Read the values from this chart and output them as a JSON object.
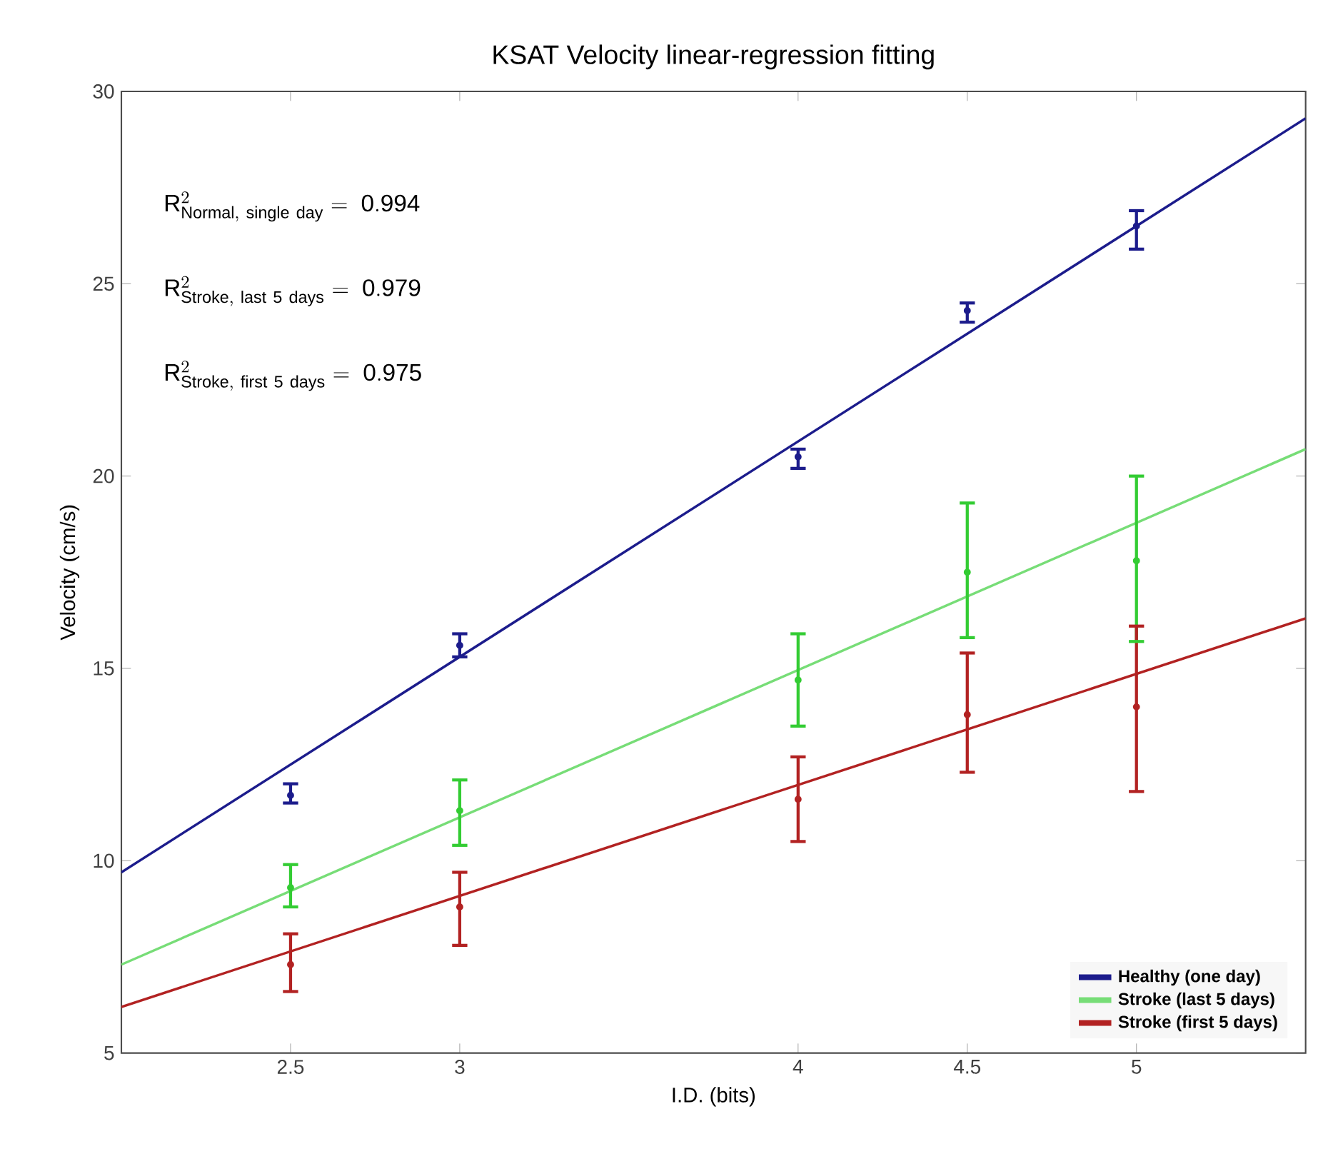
{
  "chart_data": {
    "type": "scatter",
    "title": "KSAT Velocity linear-regression fitting",
    "xlabel": "I.D. (bits)",
    "ylabel": "Velocity (cm/s)",
    "xlim": [
      2,
      5.5
    ],
    "ylim": [
      5,
      30
    ],
    "xticks": [
      2.5,
      3,
      4,
      4.5,
      5
    ],
    "yticks": [
      5,
      10,
      15,
      20,
      25,
      30
    ],
    "grid": false,
    "legend": "bottom right",
    "annotations": [
      "\\mathrm{R}^{2}_{\\mathrm{Normal,\\ single\\ day}}\\ \\mathrm{=\\ 0.994}",
      "\\mathrm{R}^{2}_{\\mathrm{Stroke,\\ last\\ 5\\ days}}\\ \\mathrm{=\\ 0.979}",
      "\\mathrm{R}^{2}_{\\mathrm{Stroke,\\ first\\ 5\\ days}}\\ \\mathrm{=\\ 0.975}"
    ],
    "series": [
      {
        "name": "Healthy (one day)",
        "type": "line",
        "marker": "none",
        "color": "#1c1c8c",
        "x": [
          2,
          5.5
        ],
        "values": [
          9.7,
          29.3
        ]
      },
      {
        "name": "Stroke (last 5 days)",
        "type": "line",
        "marker": "none",
        "color": "#77dd77",
        "x": [
          2,
          5.5
        ],
        "values": [
          7.3,
          20.7
        ]
      },
      {
        "name": "Stroke (first 5 days)",
        "type": "line",
        "marker": "none",
        "color": "#b22222",
        "x": [
          2,
          5.5
        ],
        "values": [
          6.2,
          16.3
        ]
      },
      {
        "marker": "circle",
        "color": "#1c1c8c",
        "x": [
          2.5,
          3,
          4,
          4.5,
          5
        ],
        "values": [
          11.7,
          15.6,
          20.5,
          24.3,
          26.5
        ],
        "errors": [
          [
            11.5,
            12.0
          ],
          [
            15.3,
            15.9
          ],
          [
            20.2,
            20.7
          ],
          [
            24.0,
            24.5
          ],
          [
            25.9,
            26.9
          ]
        ]
      },
      {
        "marker": "circle",
        "color": "#33cc33",
        "x": [
          2.5,
          3,
          4,
          4.5,
          5
        ],
        "values": [
          9.3,
          11.3,
          14.7,
          17.5,
          17.8
        ],
        "errors": [
          [
            8.8,
            9.9
          ],
          [
            10.4,
            12.1
          ],
          [
            13.5,
            15.9
          ],
          [
            15.8,
            19.3
          ],
          [
            15.7,
            20.0
          ]
        ]
      },
      {
        "marker": "circle",
        "color": "#b22222",
        "x": [
          2.5,
          3,
          4,
          4.5,
          5
        ],
        "values": [
          7.3,
          8.8,
          11.6,
          13.8,
          14.0
        ],
        "errors": [
          [
            6.6,
            8.1
          ],
          [
            7.8,
            9.7
          ],
          [
            10.5,
            12.7
          ],
          [
            12.3,
            15.4
          ],
          [
            11.8,
            16.1
          ]
        ]
      }
    ]
  }
}
